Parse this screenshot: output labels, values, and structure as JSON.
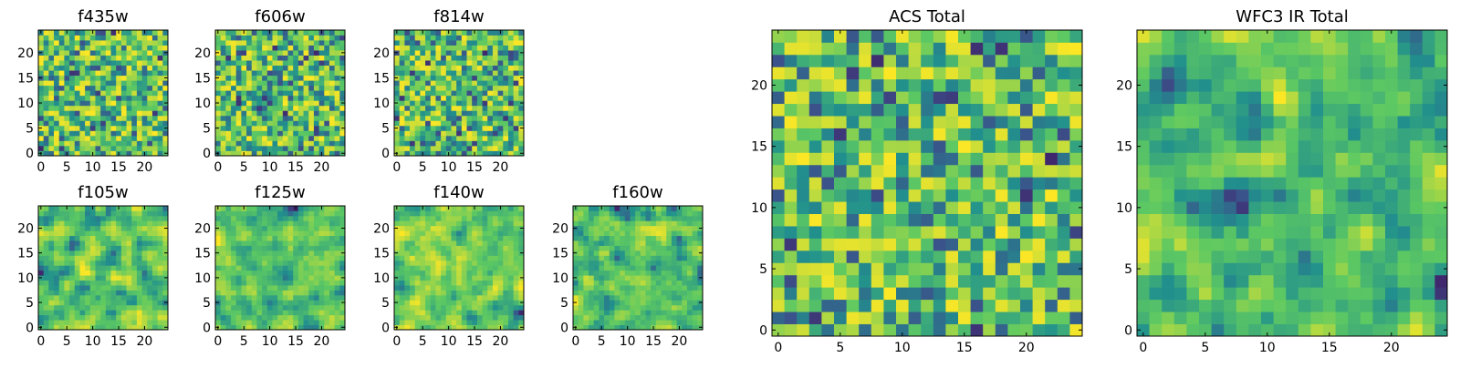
{
  "figure": {
    "colormap": "viridis",
    "colormap_stops": [
      "#440154",
      "#3b528b",
      "#21908d",
      "#5dc962",
      "#fde725"
    ],
    "frame_color": "#000000",
    "grid": false,
    "legend": "none"
  },
  "chart_data": [
    {
      "type": "heatmap",
      "title": "f435w",
      "grid_size": 25,
      "xlim": [
        -0.5,
        24.5
      ],
      "ylim": [
        -0.5,
        24.5
      ],
      "x_ticks": [
        0,
        5,
        10,
        15,
        20
      ],
      "y_ticks": [
        0,
        5,
        10,
        15,
        20
      ],
      "texture": "fine",
      "pixel_values": "random field (individual values not legible)"
    },
    {
      "type": "heatmap",
      "title": "f606w",
      "grid_size": 25,
      "xlim": [
        -0.5,
        24.5
      ],
      "ylim": [
        -0.5,
        24.5
      ],
      "x_ticks": [
        0,
        5,
        10,
        15,
        20
      ],
      "y_ticks": [
        0,
        5,
        10,
        15,
        20
      ],
      "texture": "fine",
      "pixel_values": "random field (individual values not legible)"
    },
    {
      "type": "heatmap",
      "title": "f814w",
      "grid_size": 25,
      "xlim": [
        -0.5,
        24.5
      ],
      "ylim": [
        -0.5,
        24.5
      ],
      "x_ticks": [
        0,
        5,
        10,
        15,
        20
      ],
      "y_ticks": [
        0,
        5,
        10,
        15,
        20
      ],
      "texture": "fine",
      "pixel_values": "random field (individual values not legible)"
    },
    {
      "type": "heatmap",
      "title": "f105w",
      "grid_size": 25,
      "xlim": [
        -0.5,
        24.5
      ],
      "ylim": [
        -0.5,
        24.5
      ],
      "x_ticks": [
        0,
        5,
        10,
        15,
        20
      ],
      "y_ticks": [
        0,
        5,
        10,
        15,
        20
      ],
      "texture": "smooth",
      "pixel_values": "random field (individual values not legible)"
    },
    {
      "type": "heatmap",
      "title": "f125w",
      "grid_size": 25,
      "xlim": [
        -0.5,
        24.5
      ],
      "ylim": [
        -0.5,
        24.5
      ],
      "x_ticks": [
        0,
        5,
        10,
        15,
        20
      ],
      "y_ticks": [
        0,
        5,
        10,
        15,
        20
      ],
      "texture": "smooth",
      "pixel_values": "random field (individual values not legible)"
    },
    {
      "type": "heatmap",
      "title": "f140w",
      "grid_size": 25,
      "xlim": [
        -0.5,
        24.5
      ],
      "ylim": [
        -0.5,
        24.5
      ],
      "x_ticks": [
        0,
        5,
        10,
        15,
        20
      ],
      "y_ticks": [
        0,
        5,
        10,
        15,
        20
      ],
      "texture": "smooth",
      "pixel_values": "random field (individual values not legible)"
    },
    {
      "type": "heatmap",
      "title": "f160w",
      "grid_size": 25,
      "xlim": [
        -0.5,
        24.5
      ],
      "ylim": [
        -0.5,
        24.5
      ],
      "x_ticks": [
        0,
        5,
        10,
        15,
        20
      ],
      "y_ticks": [
        0,
        5,
        10,
        15,
        20
      ],
      "texture": "smooth",
      "pixel_values": "random field (individual values not legible)"
    },
    {
      "type": "heatmap",
      "title": "ACS Total",
      "grid_size": 25,
      "xlim": [
        -0.5,
        24.5
      ],
      "ylim": [
        -0.5,
        24.5
      ],
      "x_ticks": [
        0,
        5,
        10,
        15,
        20
      ],
      "y_ticks": [
        0,
        5,
        10,
        15,
        20
      ],
      "texture": "fine",
      "pixel_values": "random field (individual values not legible)"
    },
    {
      "type": "heatmap",
      "title": "WFC3 IR Total",
      "grid_size": 25,
      "xlim": [
        -0.5,
        24.5
      ],
      "ylim": [
        -0.5,
        24.5
      ],
      "x_ticks": [
        0,
        5,
        10,
        15,
        20
      ],
      "y_ticks": [
        0,
        5,
        10,
        15,
        20
      ],
      "texture": "smooth",
      "pixel_values": "random field (individual values not legible)"
    }
  ]
}
